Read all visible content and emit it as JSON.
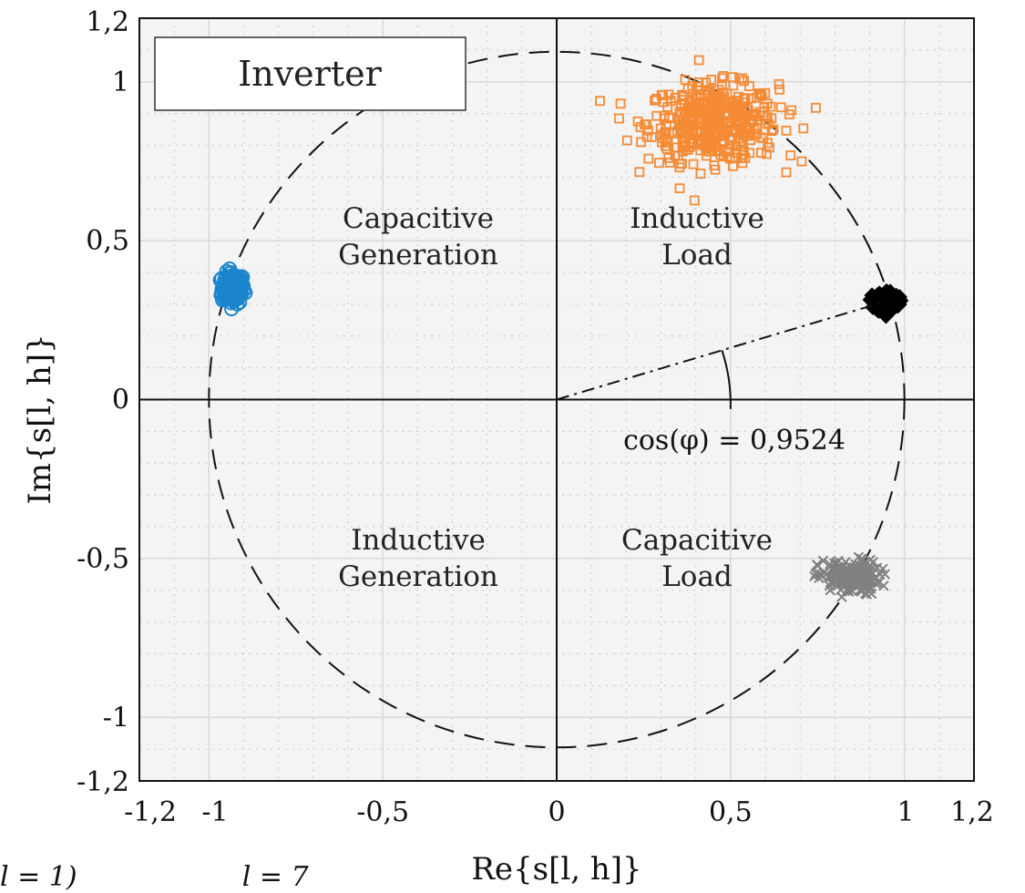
{
  "chart_data": {
    "type": "scatter",
    "title": "",
    "xlabel": "Re{s[l, h]}",
    "ylabel": "Im{s[l, h]}",
    "xlim": [
      -1.2,
      1.2
    ],
    "ylim": [
      -1.2,
      1.2
    ],
    "xticks": [
      -1.2,
      -1,
      -0.5,
      0,
      0.5,
      1,
      1.2
    ],
    "xtick_labels": [
      "-1,2",
      "-1",
      "-0,5",
      "0",
      "0,5",
      "1",
      "1,2"
    ],
    "yticks": [
      -1.2,
      -1,
      -0.5,
      0,
      0.5,
      1,
      1.2
    ],
    "ytick_labels": [
      "-1,2",
      "-1",
      "-0,5",
      "0",
      "0,5",
      "1",
      "1,2"
    ],
    "grid": true,
    "legend_title": "Inverter",
    "legend_position": "top-left",
    "unit_circle": true,
    "series": [
      {
        "marker": "circle",
        "color": "#1a85cc",
        "center": [
          -0.93,
          0.35
        ],
        "spread": [
          0.03,
          0.045
        ]
      },
      {
        "marker": "square",
        "color": "#f58a34",
        "center": [
          0.45,
          0.87
        ],
        "spread": [
          0.17,
          0.11
        ]
      },
      {
        "marker": "diamond",
        "color": "#000000",
        "center": [
          0.95,
          0.31
        ],
        "spread": [
          0.03,
          0.03
        ]
      },
      {
        "marker": "cross",
        "color": "#808080",
        "center": [
          0.84,
          -0.56
        ],
        "spread": [
          0.08,
          0.05
        ]
      }
    ],
    "power_factor_line": {
      "from": [
        0,
        0
      ],
      "to": [
        0.95,
        0.31
      ],
      "arc_radius": 0.5
    },
    "annotations": {
      "power_factor": "cos(φ) = 0,9524",
      "quadrants": {
        "q1": [
          "Inductive",
          "Load"
        ],
        "q2": [
          "Capacitive",
          "Generation"
        ],
        "q3": [
          "Inductive",
          "Generation"
        ],
        "q4": [
          "Capacitive",
          "Load"
        ]
      }
    }
  },
  "caption_fragment": "l = 1)                   l = 7"
}
